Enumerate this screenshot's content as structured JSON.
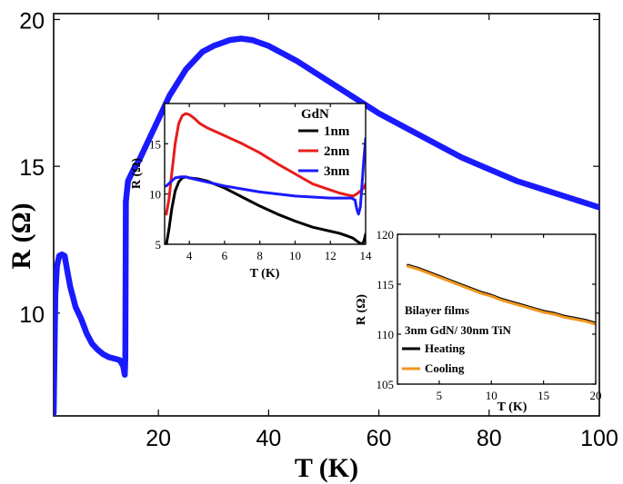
{
  "chart_data": [
    {
      "id": "main",
      "type": "line",
      "xlabel": "T (K)",
      "ylabel": "R (Ω)",
      "xlim": [
        1,
        100
      ],
      "ylim": [
        6.5,
        20.2
      ],
      "xticks": [
        20,
        40,
        60,
        80,
        100
      ],
      "yticks": [
        10,
        15,
        20
      ],
      "series": [
        {
          "name": "main",
          "color": "#1a1aff",
          "x": [
            1.0,
            1.3,
            1.6,
            2.0,
            2.5,
            3.0,
            3.5,
            4.0,
            5.0,
            6.0,
            7.0,
            8.0,
            9.0,
            10.0,
            11.0,
            12.0,
            13.0,
            13.6,
            13.9,
            14.0,
            14.1,
            14.5,
            15.5,
            16.5,
            18.0,
            20.0,
            22.0,
            25.0,
            28.0,
            30.0,
            33.0,
            35.0,
            37.0,
            40.0,
            45.0,
            50.0,
            55.0,
            60.0,
            65.0,
            70.0,
            75.0,
            80.0,
            85.0,
            90.0,
            95.0,
            100.0
          ],
          "y": [
            6.6,
            10.6,
            11.6,
            11.95,
            12.0,
            11.95,
            11.4,
            10.9,
            10.2,
            9.8,
            9.3,
            8.95,
            8.75,
            8.6,
            8.5,
            8.45,
            8.4,
            8.2,
            7.9,
            8.5,
            13.8,
            14.5,
            14.9,
            15.2,
            15.8,
            16.6,
            17.4,
            18.3,
            18.9,
            19.1,
            19.3,
            19.35,
            19.3,
            19.1,
            18.6,
            18.0,
            17.4,
            16.8,
            16.3,
            15.8,
            15.3,
            14.9,
            14.5,
            14.2,
            13.9,
            13.6
          ]
        }
      ]
    },
    {
      "id": "inset1",
      "type": "line",
      "xlabel": "T (K)",
      "ylabel": "R (Ω)",
      "xlim": [
        2.6,
        14.0
      ],
      "ylim": [
        5.0,
        19.0
      ],
      "xticks": [
        4,
        6,
        8,
        10,
        12,
        14
      ],
      "yticks": [
        5,
        10,
        15
      ],
      "legend_title": "GdN",
      "series": [
        {
          "name": "1nm",
          "color": "#000000",
          "x": [
            2.7,
            2.85,
            3.0,
            3.2,
            3.4,
            3.6,
            3.8,
            4.0,
            4.5,
            5.0,
            6.0,
            7.0,
            8.0,
            9.0,
            10.0,
            11.0,
            12.0,
            12.5,
            13.0,
            13.3,
            13.6,
            13.8,
            13.9,
            14.0
          ],
          "y": [
            5.0,
            6.5,
            8.5,
            10.3,
            11.2,
            11.6,
            11.7,
            11.6,
            11.5,
            11.3,
            10.6,
            9.7,
            8.8,
            8.0,
            7.3,
            6.7,
            6.3,
            6.1,
            5.8,
            5.6,
            5.2,
            5.0,
            5.3,
            6.0
          ]
        },
        {
          "name": "2nm",
          "color": "#e81c1c",
          "x": [
            2.7,
            2.85,
            3.0,
            3.2,
            3.4,
            3.6,
            3.8,
            4.0,
            4.3,
            4.6,
            5.0,
            6.0,
            7.0,
            8.0,
            9.0,
            10.0,
            11.0,
            12.0,
            12.5,
            13.0,
            13.3,
            13.5,
            13.7,
            13.9,
            14.0
          ],
          "y": [
            8.0,
            9.5,
            12.0,
            15.0,
            17.0,
            17.8,
            18.0,
            17.9,
            17.5,
            17.0,
            16.6,
            15.8,
            15.0,
            14.1,
            13.0,
            12.0,
            11.0,
            10.4,
            10.1,
            9.9,
            9.8,
            10.0,
            10.3,
            10.6,
            11.0
          ]
        },
        {
          "name": "3nm",
          "color": "#1a1aff",
          "x": [
            2.7,
            3.0,
            3.2,
            3.5,
            3.8,
            4.0,
            4.5,
            5.0,
            6.0,
            7.0,
            8.0,
            9.0,
            10.0,
            11.0,
            12.0,
            12.5,
            13.0,
            13.2,
            13.4,
            13.5,
            13.6,
            13.7,
            13.8,
            13.9,
            14.0
          ],
          "y": [
            10.8,
            11.3,
            11.6,
            11.7,
            11.7,
            11.6,
            11.4,
            11.2,
            10.8,
            10.5,
            10.2,
            10.0,
            9.8,
            9.7,
            9.6,
            9.6,
            9.6,
            9.6,
            9.4,
            8.5,
            8.0,
            8.7,
            11.0,
            13.5,
            15.5
          ]
        }
      ]
    },
    {
      "id": "inset2",
      "type": "line",
      "xlabel": "T (K)",
      "ylabel": "R (Ω)",
      "xlim": [
        1.0,
        20.0
      ],
      "ylim": [
        105,
        120
      ],
      "xticks": [
        5,
        10,
        15,
        20
      ],
      "yticks": [
        105,
        110,
        115,
        120
      ],
      "legend_title_lines": [
        "Bilayer films",
        "3nm GdN/ 30nm TiN"
      ],
      "series": [
        {
          "name": "Heating",
          "color": "#000000",
          "x": [
            2.0,
            3.0,
            4.0,
            5.0,
            6.0,
            7.0,
            8.0,
            9.0,
            10.0,
            11.0,
            12.0,
            13.0,
            14.0,
            15.0,
            16.0,
            17.0,
            18.0,
            19.0,
            20.0
          ],
          "y": [
            116.9,
            116.6,
            116.2,
            115.8,
            115.4,
            115.0,
            114.6,
            114.2,
            113.9,
            113.5,
            113.2,
            112.9,
            112.6,
            112.3,
            112.1,
            111.8,
            111.6,
            111.4,
            111.1
          ]
        },
        {
          "name": "Cooling",
          "color": "#f0961e",
          "x": [
            2.0,
            3.0,
            4.0,
            5.0,
            6.0,
            7.0,
            8.0,
            9.0,
            10.0,
            11.0,
            12.0,
            13.0,
            14.0,
            15.0,
            16.0,
            17.0,
            18.0,
            19.0,
            20.0
          ],
          "y": [
            116.8,
            116.5,
            116.1,
            115.7,
            115.3,
            114.9,
            114.5,
            114.1,
            113.8,
            113.4,
            113.1,
            112.8,
            112.5,
            112.2,
            112.0,
            111.7,
            111.5,
            111.3,
            111.0
          ]
        }
      ]
    }
  ]
}
